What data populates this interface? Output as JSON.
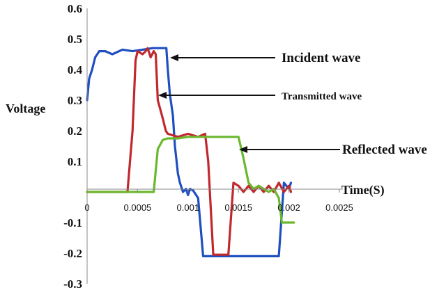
{
  "chart_data": {
    "type": "line",
    "title": "",
    "xlabel": "Time(S)",
    "ylabel": "Voltage",
    "xlim": [
      0,
      0.0025
    ],
    "ylim": [
      -0.3,
      0.6
    ],
    "x_ticks": [
      {
        "value": 0,
        "label": "0"
      },
      {
        "value": 0.0005,
        "label": "0.0005"
      },
      {
        "value": 0.001,
        "label": "0.001"
      },
      {
        "value": 0.0015,
        "label": "0.0015"
      },
      {
        "value": 0.002,
        "label": "0.002"
      },
      {
        "value": 0.0025,
        "label": "0.0025"
      }
    ],
    "y_ticks": [
      {
        "value": 0.6,
        "label": "0.6"
      },
      {
        "value": 0.5,
        "label": "0.5"
      },
      {
        "value": 0.4,
        "label": "0.4"
      },
      {
        "value": 0.3,
        "label": "0.3"
      },
      {
        "value": 0.2,
        "label": "0.2"
      },
      {
        "value": 0.1,
        "label": "0.1"
      },
      {
        "value": -0.1,
        "label": "-0.1"
      },
      {
        "value": -0.2,
        "label": "-0.2"
      },
      {
        "value": -0.3,
        "label": "-0.3"
      }
    ],
    "grid": false,
    "series": [
      {
        "color": "#1f4fbf",
        "points": [
          [
            0,
            0.3
          ],
          [
            2e-05,
            0.37
          ],
          [
            5e-05,
            0.4
          ],
          [
            8e-05,
            0.44
          ],
          [
            0.00012,
            0.46
          ],
          [
            0.00018,
            0.46
          ],
          [
            0.00025,
            0.45
          ],
          [
            0.00035,
            0.465
          ],
          [
            0.00045,
            0.46
          ],
          [
            0.00055,
            0.465
          ],
          [
            0.00065,
            0.47
          ],
          [
            0.00075,
            0.47
          ],
          [
            0.000785,
            0.47
          ],
          [
            0.0008,
            0.4
          ],
          [
            0.00082,
            0.32
          ],
          [
            0.00085,
            0.25
          ],
          [
            0.00087,
            0.15
          ],
          [
            0.0009,
            0.06
          ],
          [
            0.00092,
            0.03
          ],
          [
            0.00095,
            0.0
          ],
          [
            0.00098,
            0.01
          ],
          [
            0.001,
            -0.01
          ],
          [
            0.00102,
            0.01
          ],
          [
            0.00105,
            0.005
          ],
          [
            0.0011,
            -0.02
          ],
          [
            0.00115,
            -0.21
          ],
          [
            0.0019,
            -0.21
          ],
          [
            0.00195,
            0.03
          ],
          [
            0.002,
            0.01
          ],
          [
            0.00202,
            0.03
          ]
        ]
      },
      {
        "color": "#c0282d",
        "points": [
          [
            0,
            0.0
          ],
          [
            0.0004,
            0.0
          ],
          [
            0.00045,
            0.2
          ],
          [
            0.00048,
            0.43
          ],
          [
            0.0005,
            0.46
          ],
          [
            0.00055,
            0.45
          ],
          [
            0.00058,
            0.46
          ],
          [
            0.0006,
            0.47
          ],
          [
            0.00063,
            0.44
          ],
          [
            0.00066,
            0.46
          ],
          [
            0.00068,
            0.45
          ],
          [
            0.0007,
            0.3
          ],
          [
            0.00075,
            0.24
          ],
          [
            0.00078,
            0.2
          ],
          [
            0.0008,
            0.19
          ],
          [
            0.0009,
            0.18
          ],
          [
            0.001,
            0.19
          ],
          [
            0.0011,
            0.18
          ],
          [
            0.00117,
            0.19
          ],
          [
            0.0012,
            0.1
          ],
          [
            0.00125,
            -0.205
          ],
          [
            0.0014,
            -0.205
          ],
          [
            0.00145,
            0.03
          ],
          [
            0.0015,
            0.02
          ],
          [
            0.00155,
            0.0
          ],
          [
            0.0016,
            0.02
          ],
          [
            0.00165,
            0.0
          ],
          [
            0.0017,
            0.02
          ],
          [
            0.00175,
            0.0
          ],
          [
            0.0018,
            0.02
          ],
          [
            0.00185,
            0.0
          ],
          [
            0.0019,
            0.03
          ],
          [
            0.00195,
            0.0
          ],
          [
            0.002,
            0.02
          ],
          [
            0.00202,
            0.0
          ]
        ]
      },
      {
        "color": "#6ab82e",
        "points": [
          [
            0,
            0.0
          ],
          [
            0.00066,
            0.0
          ],
          [
            0.0007,
            0.14
          ],
          [
            0.00075,
            0.17
          ],
          [
            0.0008,
            0.175
          ],
          [
            0.0009,
            0.175
          ],
          [
            0.001,
            0.18
          ],
          [
            0.0012,
            0.18
          ],
          [
            0.00135,
            0.18
          ],
          [
            0.0015,
            0.18
          ],
          [
            0.00155,
            0.11
          ],
          [
            0.0016,
            0.03
          ],
          [
            0.00165,
            0.01
          ],
          [
            0.0017,
            0.02
          ],
          [
            0.0018,
            0.0
          ],
          [
            0.00185,
            0.01
          ],
          [
            0.0019,
            -0.02
          ],
          [
            0.00193,
            -0.1
          ],
          [
            0.00205,
            -0.1
          ]
        ]
      }
    ],
    "annotations": [
      {
        "text": "Incident wave",
        "target": [
          0.00078,
          0.47
        ]
      },
      {
        "text": "Transmitted wave",
        "target": [
          0.0007,
          0.32
        ]
      },
      {
        "text": "Reflected wave",
        "target": [
          0.00145,
          0.14
        ]
      }
    ]
  }
}
